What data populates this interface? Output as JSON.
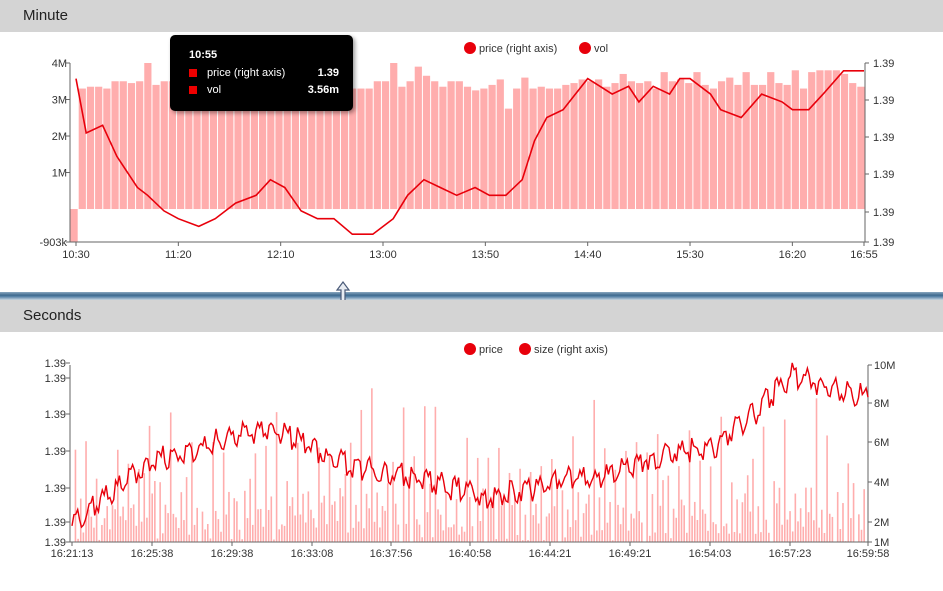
{
  "panels": {
    "minute": {
      "title": "Minute"
    },
    "seconds": {
      "title": "Seconds"
    }
  },
  "tooltip": {
    "time": "10:55",
    "rows": [
      {
        "label": "price (right axis)",
        "value": "1.39"
      },
      {
        "label": "vol",
        "value": "3.56m"
      }
    ]
  },
  "colors": {
    "line": "#e8000b",
    "bar": "#ffadad",
    "marker": "#e8000b",
    "header_bg": "#d4d4d4"
  },
  "icons": {
    "divider_handle": "resize-vertical-icon"
  },
  "chart_data": [
    {
      "type": "bar",
      "title": "",
      "legend": {
        "position": "top-center",
        "entries": [
          "price (right axis)",
          "vol"
        ]
      },
      "x_ticks": [
        "10:30",
        "11:20",
        "12:10",
        "13:00",
        "13:50",
        "14:40",
        "15:30",
        "16:20",
        "16:55"
      ],
      "y_left_ticks": [
        "-903k",
        "1M",
        "2M",
        "3M",
        "4M"
      ],
      "y_right_ticks": [
        "1.39",
        "1.39",
        "1.39",
        "1.39",
        "1.39",
        "1.39"
      ],
      "y_left_range": [
        -903000,
        4000000
      ],
      "series": [
        {
          "name": "vol",
          "type": "bar",
          "axis": "left",
          "values": [
            -903000,
            3300000,
            3350000,
            3350000,
            3300000,
            3500000,
            3500000,
            3450000,
            3500000,
            4000000,
            3400000,
            3500000,
            3500000,
            3400000,
            3450000,
            3350000,
            3550000,
            3550000,
            3400000,
            3350000,
            3400000,
            3350000,
            3300000,
            3250000,
            3550000,
            3350000,
            3300000,
            3350000,
            3450000,
            3600000,
            3300000,
            3450000,
            3550000,
            3700000,
            3300000,
            3300000,
            3300000,
            3500000,
            3500000,
            4000000,
            3350000,
            3500000,
            3900000,
            3650000,
            3500000,
            3350000,
            3500000,
            3500000,
            3350000,
            3250000,
            3300000,
            3400000,
            3550000,
            2750000,
            3300000,
            3600000,
            3300000,
            3350000,
            3300000,
            3300000,
            3400000,
            3450000,
            3550000,
            3500000,
            3550000,
            3350000,
            3450000,
            3700000,
            3500000,
            3450000,
            3500000,
            3300000,
            3750000,
            3500000,
            3550000,
            3450000,
            3750000,
            3400000,
            3300000,
            3500000,
            3600000,
            3400000,
            3750000,
            3400000,
            3400000,
            3750000,
            3450000,
            3400000,
            3800000,
            3300000,
            3750000,
            3800000,
            3800000,
            3800000,
            3700000,
            3450000,
            3350000
          ]
        },
        {
          "name": "price (right axis)",
          "type": "line",
          "axis": "right",
          "x": [
            "10:30",
            "10:35",
            "10:43",
            "10:50",
            "11:00",
            "11:05",
            "11:13",
            "11:20",
            "11:30",
            "11:38",
            "11:48",
            "11:58",
            "12:05",
            "12:12",
            "12:20",
            "12:28",
            "12:36",
            "12:45",
            "12:55",
            "13:05",
            "13:12",
            "13:20",
            "13:28",
            "13:36",
            "13:45",
            "13:52",
            "14:00",
            "14:08",
            "14:14",
            "14:20",
            "14:28",
            "14:34",
            "14:40",
            "14:46",
            "14:52",
            "15:00",
            "15:05",
            "15:12",
            "15:20",
            "15:25",
            "15:30",
            "15:40",
            "15:45",
            "15:55",
            "16:05",
            "16:15",
            "16:20",
            "16:28",
            "16:35",
            "16:45",
            "16:55"
          ],
          "y": [
            1.3912,
            1.3905,
            1.3906,
            1.3902,
            1.3898,
            1.3897,
            1.3895,
            1.3894,
            1.3893,
            1.3894,
            1.3896,
            1.3897,
            1.3899,
            1.3898,
            1.3895,
            1.3894,
            1.3894,
            1.3892,
            1.3892,
            1.3894,
            1.3897,
            1.3899,
            1.3898,
            1.3897,
            1.3898,
            1.3897,
            1.3897,
            1.3899,
            1.3904,
            1.3907,
            1.3908,
            1.391,
            1.3912,
            1.3911,
            1.391,
            1.3911,
            1.3909,
            1.3911,
            1.391,
            1.3912,
            1.3912,
            1.391,
            1.3908,
            1.3907,
            1.391,
            1.3909,
            1.3908,
            1.3908,
            1.391,
            1.3913,
            1.3913
          ]
        }
      ]
    },
    {
      "type": "line",
      "title": "",
      "legend": {
        "position": "top-center",
        "entries": [
          "price",
          "size (right axis)"
        ]
      },
      "x_ticks": [
        "16:21:13",
        "16:25:38",
        "16:29:38",
        "16:33:08",
        "16:37:56",
        "16:40:58",
        "16:44:21",
        "16:49:21",
        "16:54:03",
        "16:57:23",
        "16:59:58"
      ],
      "y_left_ticks": [
        "1.39",
        "1.39",
        "1.39",
        "1.39",
        "1.39",
        "1.39",
        "1.39"
      ],
      "y_right_ticks": [
        "1M",
        "2M",
        "4M",
        "6M",
        "8M",
        "10M"
      ],
      "y_right_range": [
        1000000,
        10000000
      ],
      "series": [
        {
          "name": "price",
          "type": "line",
          "axis": "left",
          "x": [
            "16:21:13",
            "16:22:10",
            "16:23:30",
            "16:25:38",
            "16:27:00",
            "16:29:38",
            "16:31:00",
            "16:33:08",
            "16:35:00",
            "16:37:56",
            "16:39:30",
            "16:40:58",
            "16:42:30",
            "16:44:21",
            "16:46:30",
            "16:49:21",
            "16:51:00",
            "16:54:03",
            "16:56:00",
            "16:57:23",
            "16:58:30",
            "16:59:58"
          ],
          "y": [
            1.3885,
            1.3895,
            1.3905,
            1.3908,
            1.3912,
            1.3915,
            1.3912,
            1.3905,
            1.3902,
            1.39,
            1.3897,
            1.3894,
            1.3896,
            1.39,
            1.39,
            1.3905,
            1.3908,
            1.391,
            1.392,
            1.3932,
            1.3928,
            1.3925
          ]
        },
        {
          "name": "size (right axis)",
          "type": "bar",
          "axis": "right",
          "note_values_approx": [
            2000000,
            6000000,
            3000000,
            4500000,
            2500000,
            9500000,
            3500000,
            5000000,
            2200000,
            6500000,
            3000000,
            4000000,
            2500000,
            8000000,
            3500000,
            4500000,
            2800000,
            9000000,
            3000000,
            5000000,
            2500000,
            7000000,
            3500000,
            4000000
          ]
        }
      ]
    }
  ]
}
